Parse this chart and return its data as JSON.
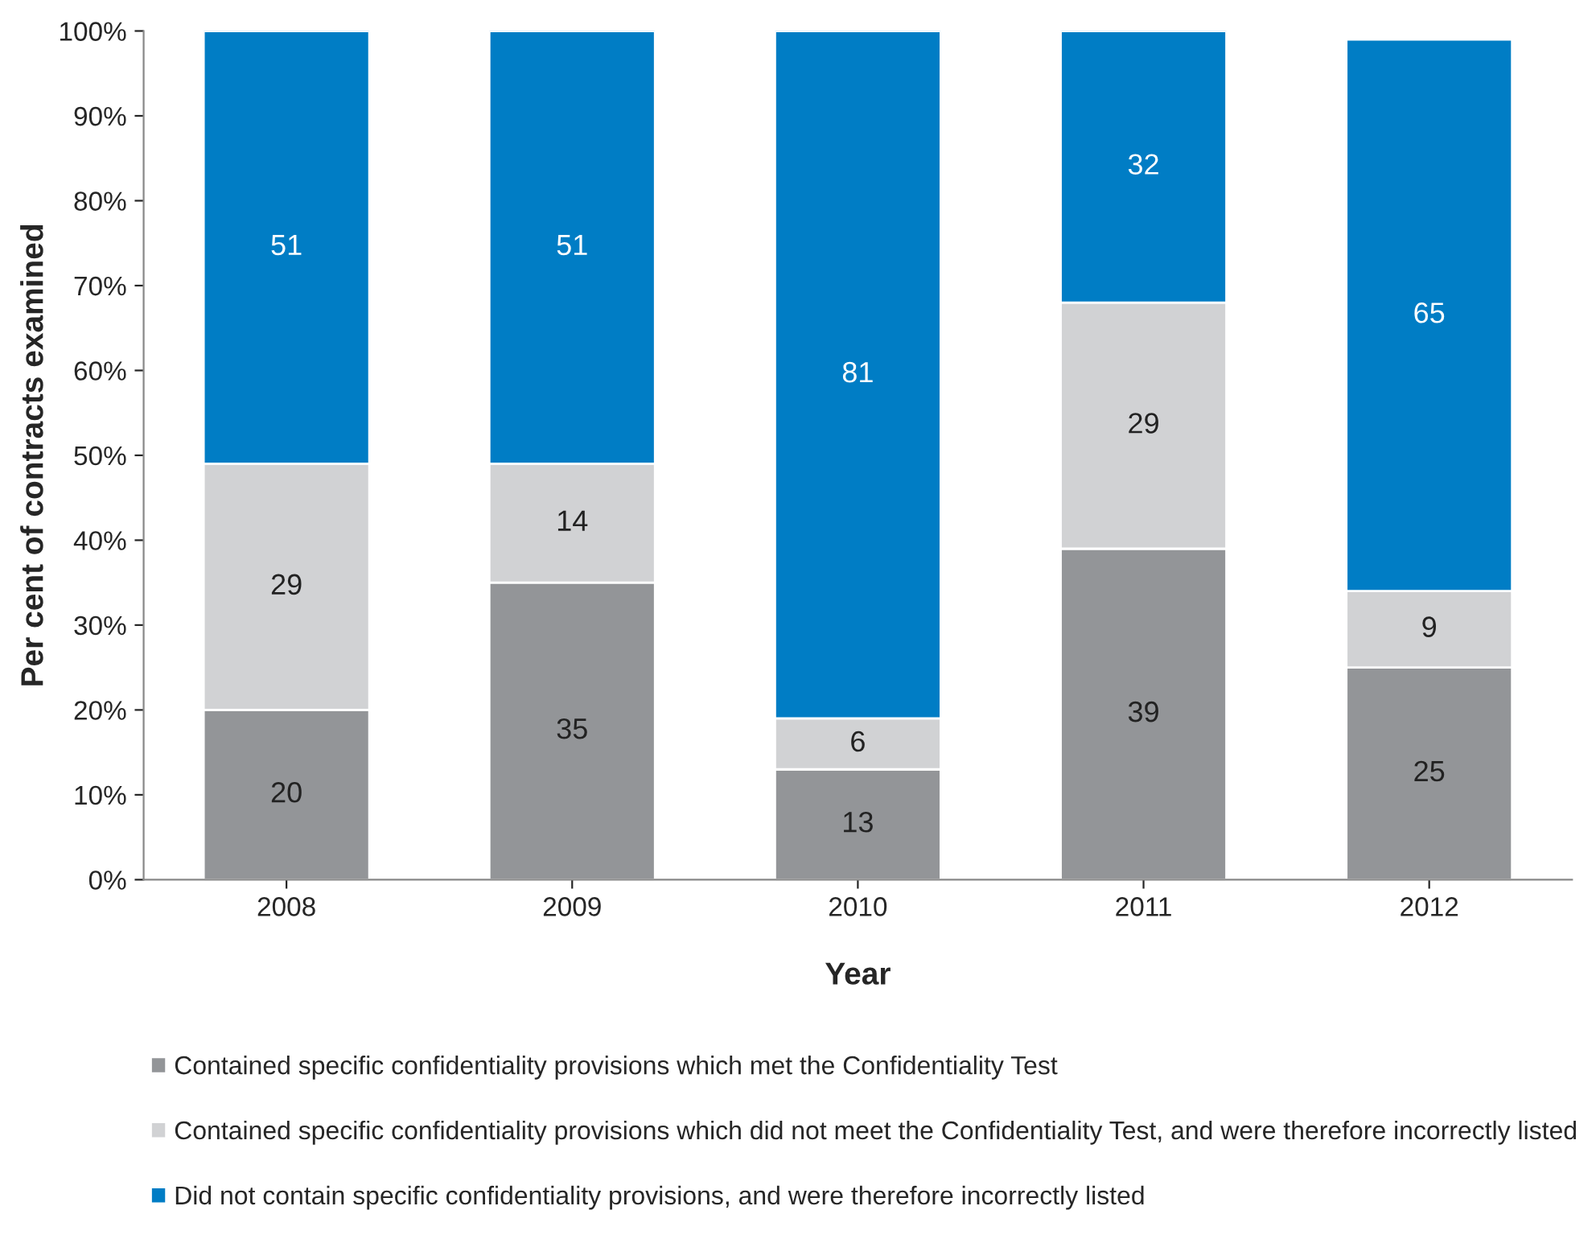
{
  "chart_data": {
    "type": "bar",
    "stacked": true,
    "xlabel": "Year",
    "ylabel": "Per cent of contracts examined",
    "categories": [
      "2008",
      "2009",
      "2010",
      "2011",
      "2012"
    ],
    "series": [
      {
        "name": "Contained specific confidentiality provisions which met the Confidentiality Test",
        "color": "#939598",
        "values": [
          20,
          35,
          13,
          39,
          25
        ]
      },
      {
        "name": "Contained specific confidentiality provisions which did not meet the Confidentiality Test, and were therefore incorrectly listed",
        "color": "#d1d2d4",
        "values": [
          29,
          14,
          6,
          29,
          9
        ]
      },
      {
        "name": "Did not contain specific confidentiality provisions, and were therefore incorrectly listed",
        "color": "#007dc5",
        "values": [
          51,
          51,
          81,
          32,
          65
        ]
      }
    ],
    "ylim": [
      0,
      100
    ],
    "yticks": [
      {
        "value": 0,
        "label": "0%"
      },
      {
        "value": 10,
        "label": "10%"
      },
      {
        "value": 20,
        "label": "20%"
      },
      {
        "value": 30,
        "label": "30%"
      },
      {
        "value": 40,
        "label": "40%"
      },
      {
        "value": 50,
        "label": "50%"
      },
      {
        "value": 60,
        "label": "60%"
      },
      {
        "value": 70,
        "label": "70%"
      },
      {
        "value": 80,
        "label": "80%"
      },
      {
        "value": 90,
        "label": "90%"
      },
      {
        "value": 100,
        "label": "100%"
      }
    ],
    "data_labels": true,
    "legend": "bottom"
  }
}
